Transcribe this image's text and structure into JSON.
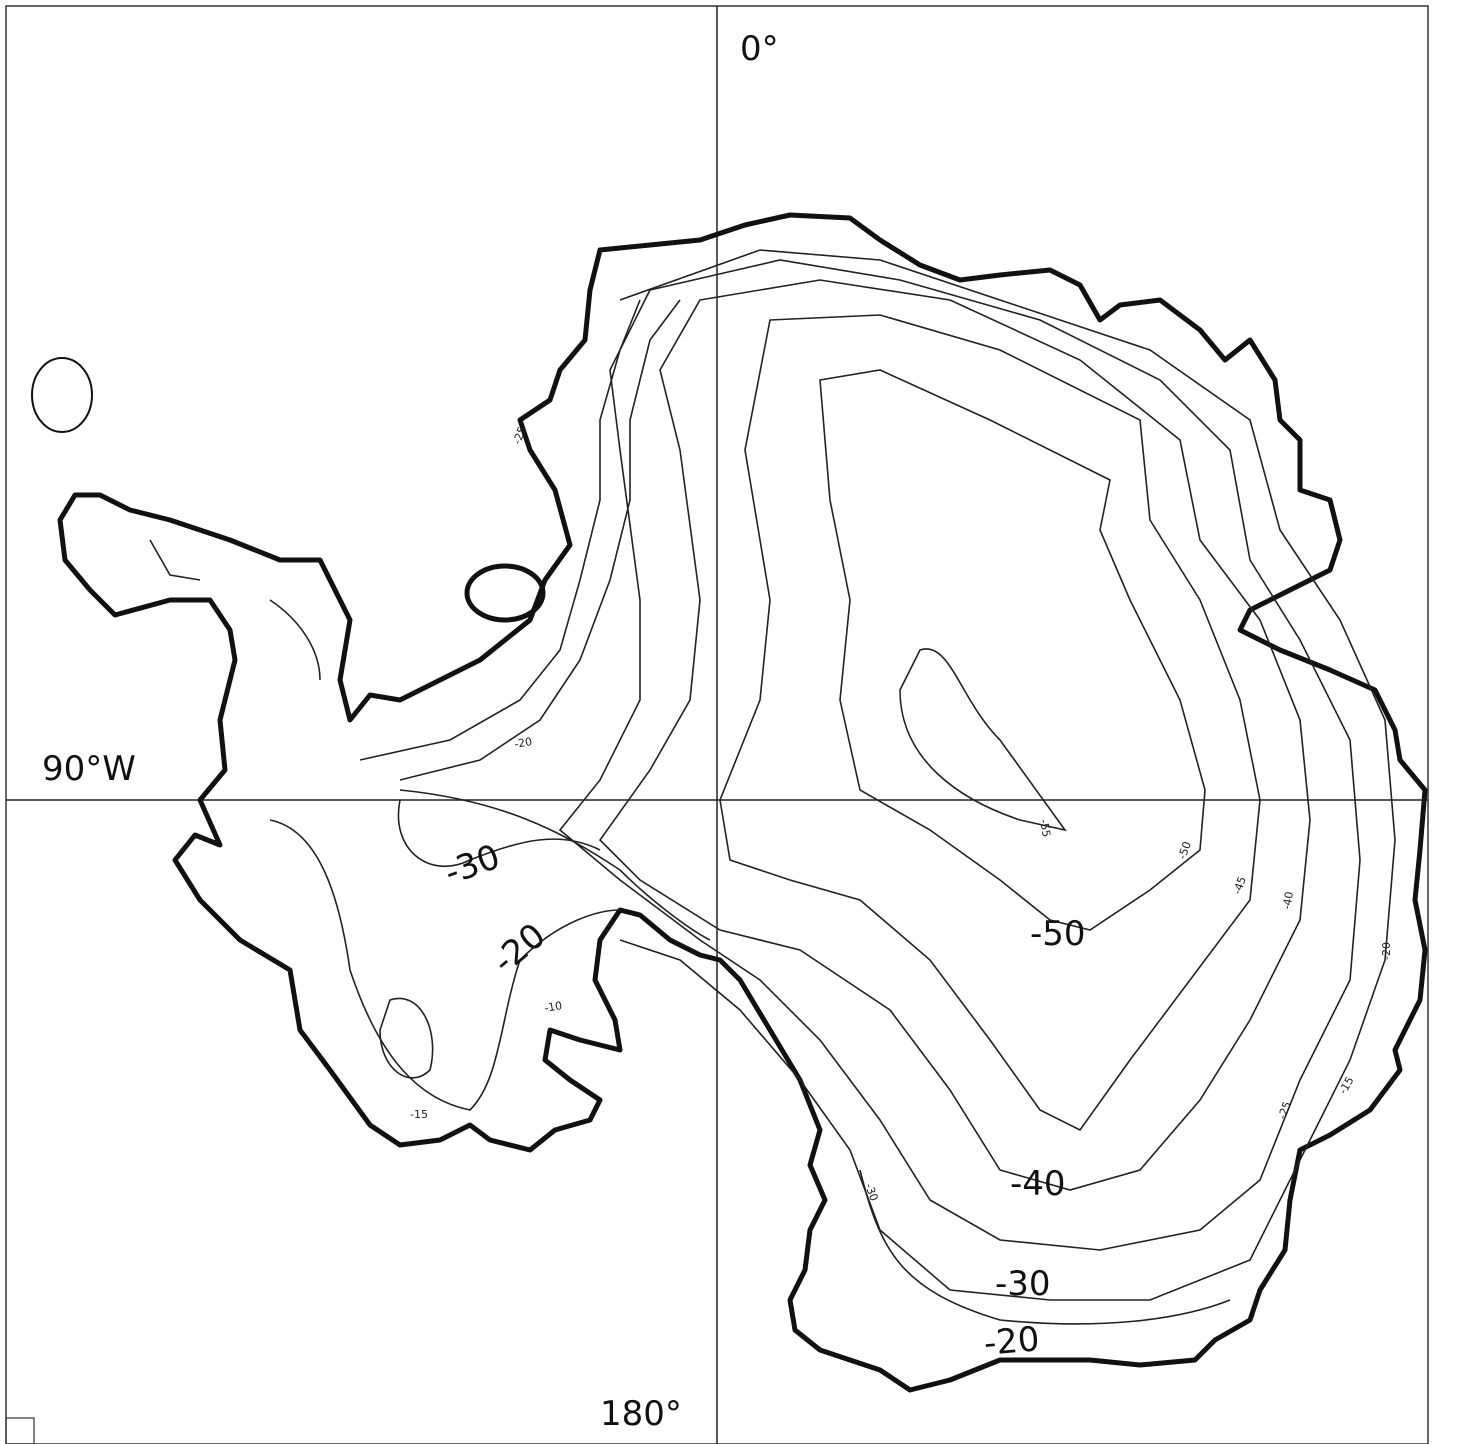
{
  "meridians": {
    "top": "0°",
    "left": "90°W",
    "bottom": "180°"
  },
  "contour_labels": [
    {
      "text": "-30"
    },
    {
      "text": "-20"
    },
    {
      "text": "-50"
    },
    {
      "text": "-40"
    },
    {
      "text": "-30"
    },
    {
      "text": "-20"
    },
    {
      "text": "-55"
    },
    {
      "text": "-50"
    },
    {
      "text": "-45"
    },
    {
      "text": "-40"
    },
    {
      "text": "-20"
    },
    {
      "text": "-15"
    },
    {
      "text": "-25"
    },
    {
      "text": "-30"
    },
    {
      "text": "-15"
    },
    {
      "text": "-10"
    },
    {
      "text": "-20"
    },
    {
      "text": "-25"
    }
  ]
}
